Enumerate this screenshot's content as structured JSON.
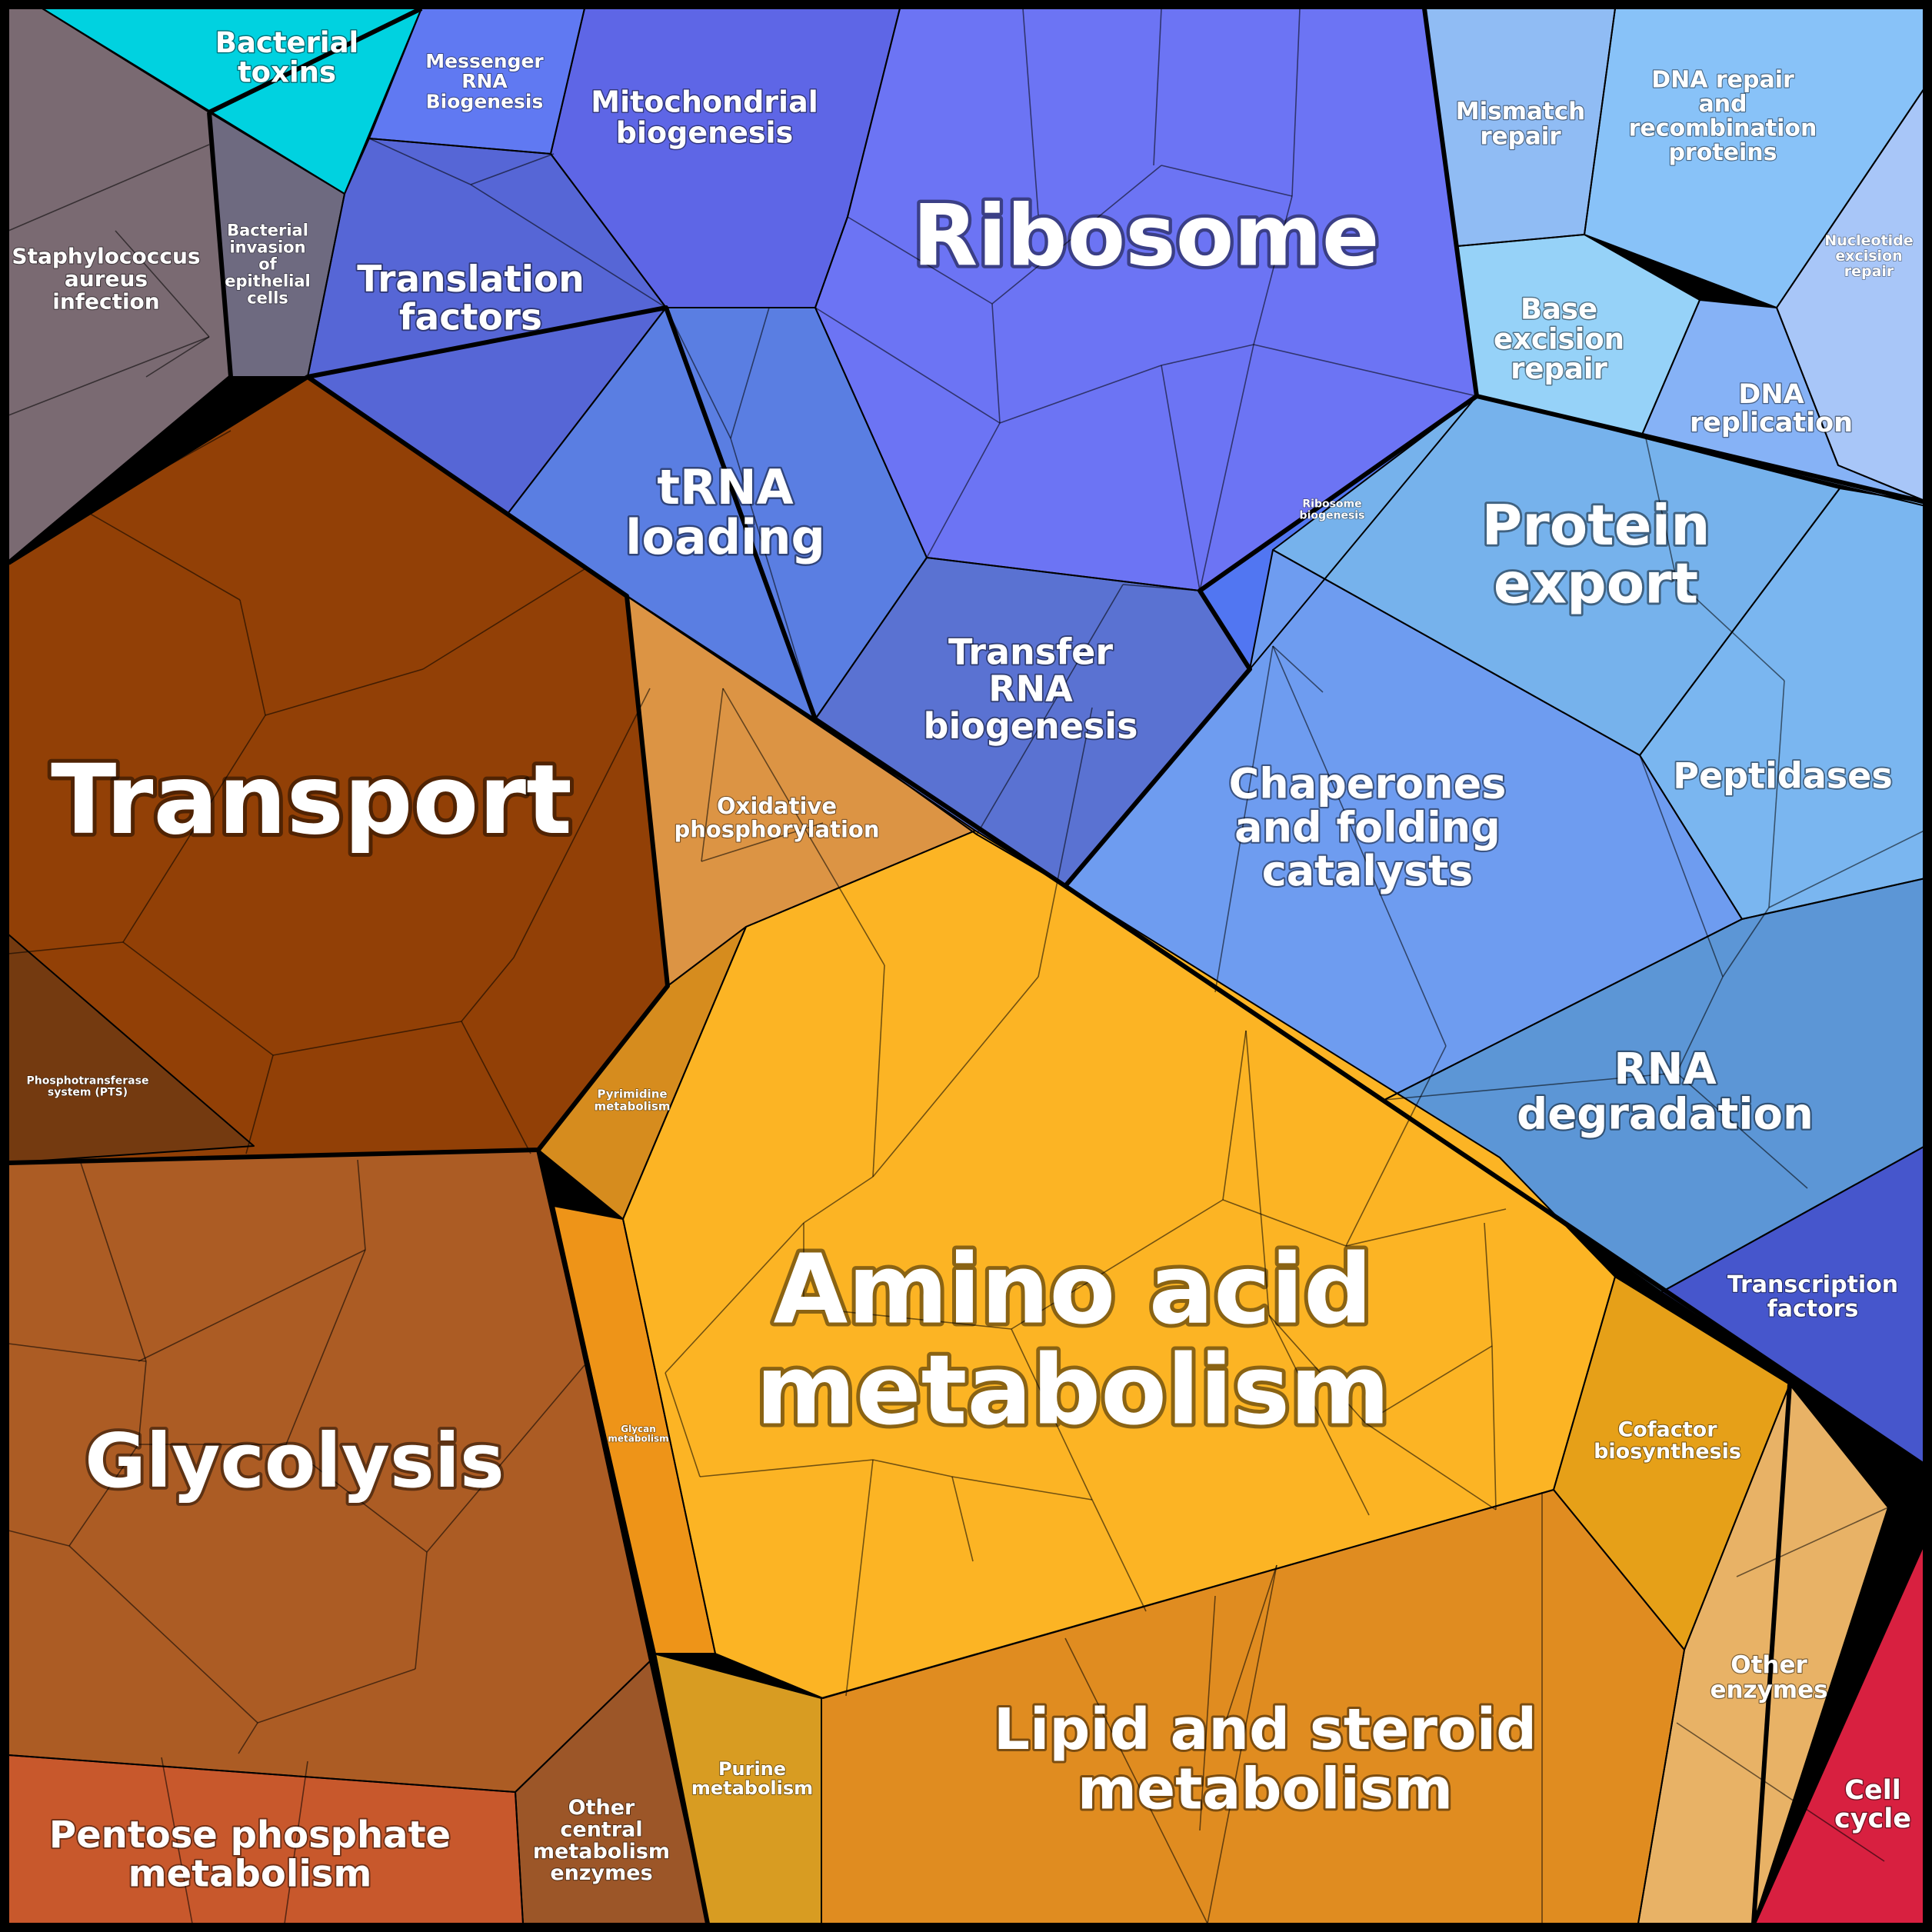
{
  "regions": [
    {
      "name": "Bacterial toxins",
      "color": "#00d2e0"
    },
    {
      "name": "Staphylococcus aureus infection",
      "color": "#7a6a72"
    },
    {
      "name": "Bacterial invasion of epithelial cells",
      "color": "#6e6a80"
    },
    {
      "name": "Messenger RNA Biogenesis",
      "color": "#6079f2"
    },
    {
      "name": "Mitochondrial biogenesis",
      "color": "#5e66e6"
    },
    {
      "name": "Translation factors",
      "color": "#5666d6"
    },
    {
      "name": "tRNA loading",
      "color": "#5a7ee2"
    },
    {
      "name": "Ribosome",
      "color": "#6c74f4"
    },
    {
      "name": "Ribosome biogenesis",
      "color": "#5176f2"
    },
    {
      "name": "Transfer RNA biogenesis",
      "color": "#5a72d2"
    },
    {
      "name": "Mismatch repair",
      "color": "#90bcf4"
    },
    {
      "name": "DNA repair and recombination proteins",
      "color": "#88c2f8"
    },
    {
      "name": "Nucleotide excision repair",
      "color": "#a8c6f8"
    },
    {
      "name": "Base excision repair",
      "color": "#96d2f8"
    },
    {
      "name": "DNA replication",
      "color": "#86b2f6"
    },
    {
      "name": "Protein export",
      "color": "#76b2ec"
    },
    {
      "name": "Chaperones and folding catalysts",
      "color": "#6e9cf0"
    },
    {
      "name": "Peptidases",
      "color": "#7ab6f0"
    },
    {
      "name": "RNA degradation",
      "color": "#5c96d6"
    },
    {
      "name": "Transcription factors",
      "color": "#4656cc"
    },
    {
      "name": "Transport",
      "color": "#924006"
    },
    {
      "name": "Phosphotransferase system (PTS)",
      "color": "#743a10"
    },
    {
      "name": "Oxidative phosphorylation",
      "color": "#dc9444"
    },
    {
      "name": "Pyrimidine metabolism",
      "color": "#d68c1e"
    },
    {
      "name": "Amino acid metabolism",
      "color": "#fcb424"
    },
    {
      "name": "Glycan metabolism",
      "color": "#ee9418"
    },
    {
      "name": "Cofactor biosynthesis",
      "color": "#e6a018"
    },
    {
      "name": "Glycolysis",
      "color": "#ac5c24"
    },
    {
      "name": "Pentose phosphate metabolism",
      "color": "#c8582c"
    },
    {
      "name": "Other central metabolism enzymes",
      "color": "#9c5628"
    },
    {
      "name": "Purine metabolism",
      "color": "#d89c22"
    },
    {
      "name": "Lipid and steroid metabolism",
      "color": "#e08c20"
    },
    {
      "name": "Other enzymes",
      "color": "#e8b266"
    },
    {
      "name": "Cell cycle",
      "color": "#d82040"
    }
  ]
}
